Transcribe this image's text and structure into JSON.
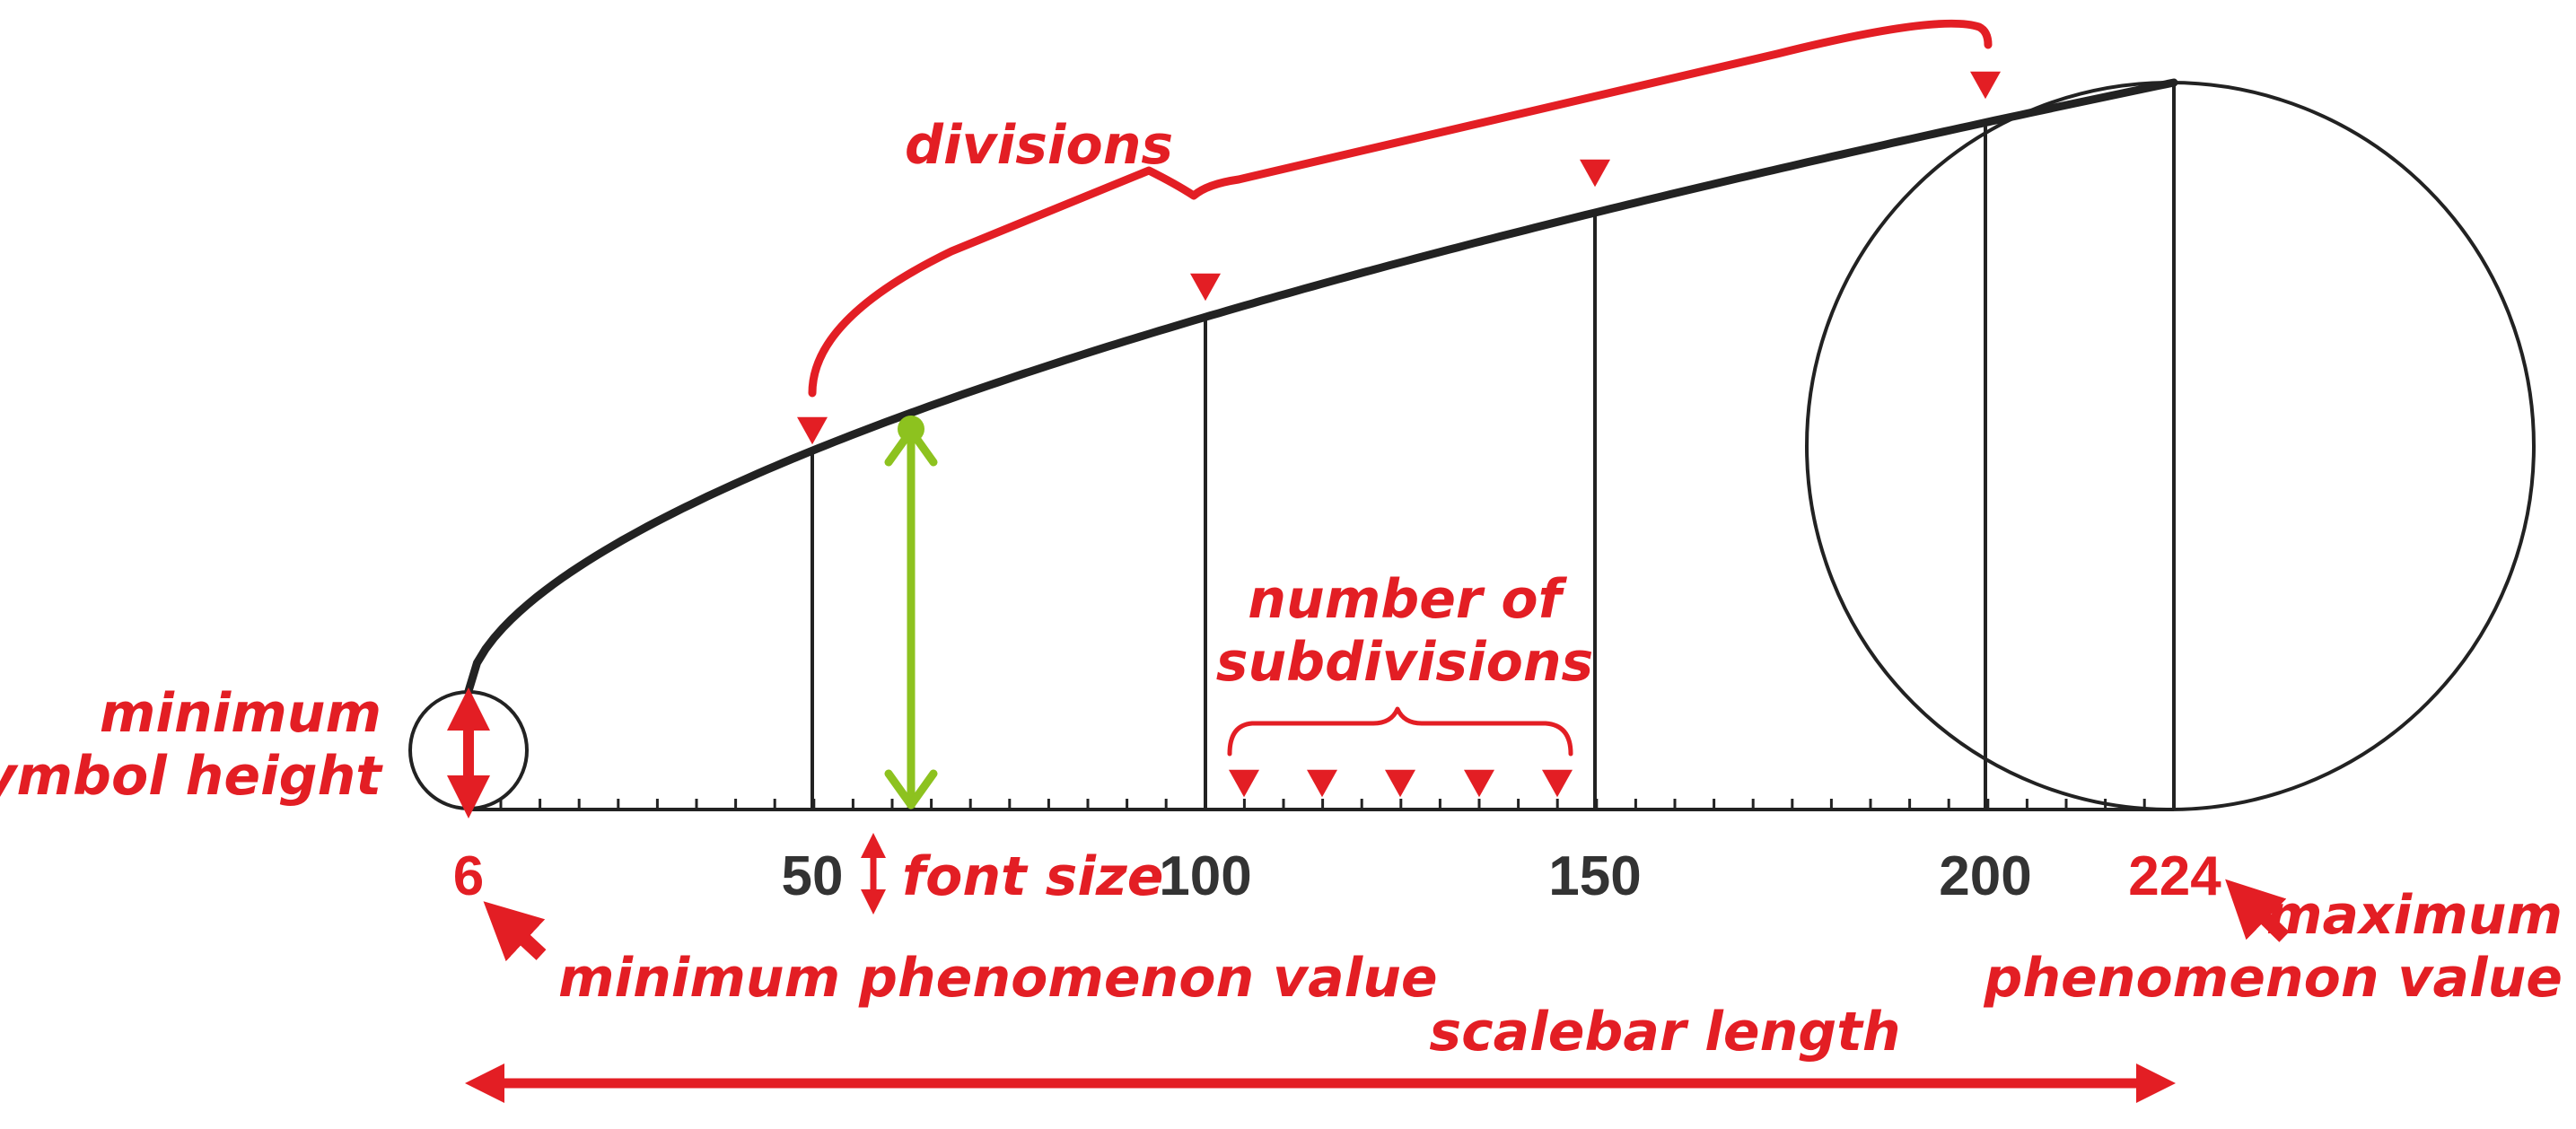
{
  "diagram": {
    "colors": {
      "accent_red": "#e31e24",
      "curve_dark": "#222222",
      "font_size_marker_green": "#8dc21f"
    },
    "scale": {
      "tick_labels": [
        "6",
        "50",
        "100",
        "150",
        "200",
        "224"
      ],
      "min_value": "6",
      "max_value": "224"
    },
    "annotations": {
      "divisions": "divisions",
      "number_of_subdivisions_line1": "number of",
      "number_of_subdivisions_line2": "subdivisions",
      "minimum_symbol_height_line1": "minimum",
      "minimum_symbol_height_line2": "symbol height",
      "font_size": "font size",
      "minimum_phenomenon_value": "minimum phenomenon value",
      "maximum_phenomenon_value_line1": "maximum",
      "maximum_phenomenon_value_line2": "phenomenon value",
      "scalebar_length": "scalebar length"
    },
    "icons": [
      "small-circle-symbol",
      "large-circle-symbol",
      "down-triangle-marker",
      "arrow-icon",
      "brace-icon"
    ]
  }
}
